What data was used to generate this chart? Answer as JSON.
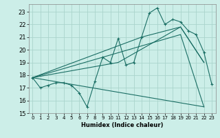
{
  "xlabel": "Humidex (Indice chaleur)",
  "bg_color": "#cceee8",
  "grid_color": "#aad4cc",
  "line_color": "#1a6e64",
  "xlim": [
    -0.5,
    23.5
  ],
  "ylim": [
    15,
    23.6
  ],
  "yticks": [
    15,
    16,
    17,
    18,
    19,
    20,
    21,
    22,
    23
  ],
  "xticks": [
    0,
    1,
    2,
    3,
    4,
    5,
    6,
    7,
    8,
    9,
    10,
    11,
    12,
    13,
    14,
    15,
    16,
    17,
    18,
    19,
    20,
    21,
    22,
    23
  ],
  "line1_x": [
    0,
    1,
    2,
    3,
    4,
    5,
    6,
    7,
    8,
    9,
    10,
    11,
    12,
    13,
    14,
    15,
    16,
    17,
    18,
    19,
    20,
    21,
    22,
    23
  ],
  "line1_y": [
    17.8,
    17.0,
    17.2,
    17.4,
    17.4,
    17.2,
    16.6,
    15.5,
    17.5,
    19.4,
    19.0,
    20.9,
    18.8,
    19.0,
    21.0,
    22.9,
    23.3,
    22.0,
    22.4,
    22.2,
    21.5,
    21.2,
    19.8,
    17.3
  ],
  "line2_x": [
    0,
    14,
    19,
    22
  ],
  "line2_y": [
    17.8,
    21.0,
    21.8,
    19.0
  ],
  "line3_x": [
    0,
    11,
    19,
    22
  ],
  "line3_y": [
    17.8,
    19.0,
    21.8,
    19.0
  ],
  "line4_x": [
    0,
    22
  ],
  "line4_y": [
    17.8,
    15.5
  ],
  "line5_x": [
    0,
    19,
    22
  ],
  "line5_y": [
    17.8,
    21.2,
    15.5
  ]
}
